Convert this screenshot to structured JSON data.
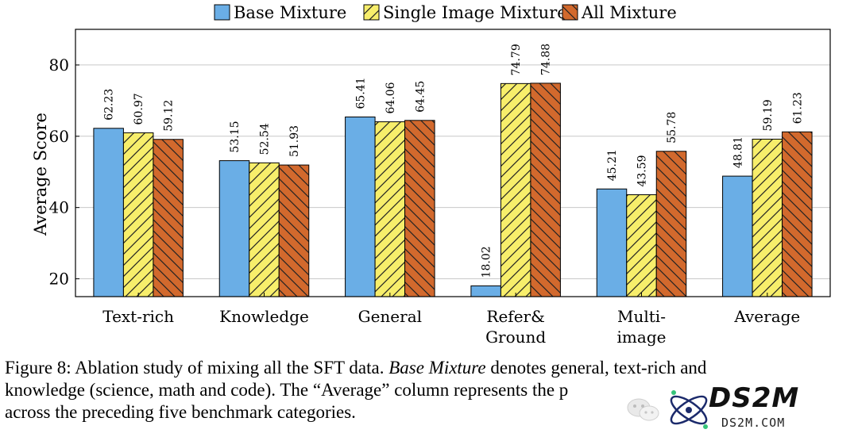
{
  "chart_data": {
    "type": "bar",
    "categories": [
      "Text-rich",
      "Knowledge",
      "General",
      "Refer& Ground",
      "Multi- image",
      "Average"
    ],
    "category_lines": [
      [
        "Text-rich"
      ],
      [
        "Knowledge"
      ],
      [
        "General"
      ],
      [
        "Refer&",
        "Ground"
      ],
      [
        "Multi-",
        "image"
      ],
      [
        "Average"
      ]
    ],
    "series": [
      {
        "name": "Base Mixture",
        "values": [
          62.23,
          53.15,
          65.41,
          18.02,
          45.21,
          48.81
        ],
        "color": "#6aaee6",
        "pattern": "none"
      },
      {
        "name": "Single Image Mixture",
        "values": [
          60.97,
          52.54,
          64.06,
          74.79,
          43.59,
          59.19
        ],
        "color": "#f7ee6b",
        "pattern": "diagonal-up"
      },
      {
        "name": "All Mixture",
        "values": [
          59.12,
          51.93,
          64.45,
          74.88,
          55.78,
          61.23
        ],
        "color": "#d2692d",
        "pattern": "diagonal-down"
      }
    ],
    "ylabel": "Average Score",
    "xlabel": "",
    "ylim": [
      15,
      90
    ],
    "yticks": [
      20,
      40,
      60,
      80
    ],
    "grid": "horizontal",
    "legend": "top-center"
  },
  "caption": {
    "line1_prefix": "Figure 8: Ablation study of mixing all the SFT data. ",
    "line1_italic": "Base Mixture",
    "line1_suffix": " denotes general, text-rich and",
    "line2": "knowledge (science, math and code). The “Average” column represents the p",
    "line3": "across the preceding five benchmark categories."
  },
  "watermark": {
    "brand": "DS2M",
    "url": "DS2M.COM",
    "icons": [
      "wechat-icon",
      "atom-logo-icon"
    ]
  }
}
